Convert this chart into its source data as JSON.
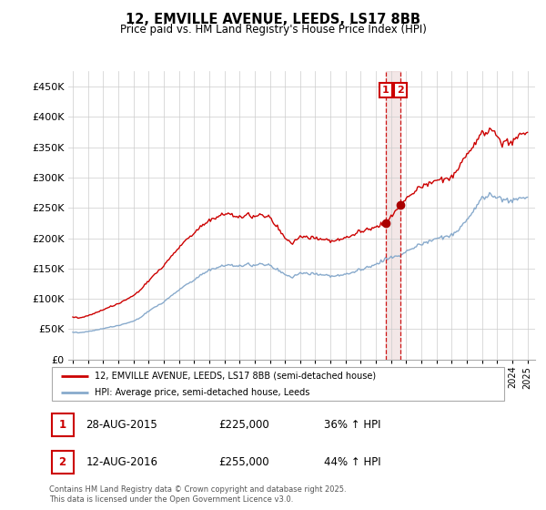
{
  "title": "12, EMVILLE AVENUE, LEEDS, LS17 8BB",
  "subtitle": "Price paid vs. HM Land Registry's House Price Index (HPI)",
  "ylim": [
    0,
    475000
  ],
  "yticks": [
    0,
    50000,
    100000,
    150000,
    200000,
    250000,
    300000,
    350000,
    400000,
    450000
  ],
  "ytick_labels": [
    "£0",
    "£50K",
    "£100K",
    "£150K",
    "£200K",
    "£250K",
    "£300K",
    "£350K",
    "£400K",
    "£450K"
  ],
  "line1_color": "#cc0000",
  "line2_color": "#88aacc",
  "marker1_color": "#aa0000",
  "vline_color": "#cc0000",
  "annotation_box_color": "#cc0000",
  "shade_color": "#ddbbbb",
  "legend_label1": "12, EMVILLE AVENUE, LEEDS, LS17 8BB (semi-detached house)",
  "legend_label2": "HPI: Average price, semi-detached house, Leeds",
  "note1_num": "1",
  "note1_date": "28-AUG-2015",
  "note1_price": "£225,000",
  "note1_hpi": "36% ↑ HPI",
  "note2_num": "2",
  "note2_date": "12-AUG-2016",
  "note2_price": "£255,000",
  "note2_hpi": "44% ↑ HPI",
  "copyright": "Contains HM Land Registry data © Crown copyright and database right 2025.\nThis data is licensed under the Open Government Licence v3.0.",
  "sale1_x": 2015.65,
  "sale1_y": 225000,
  "sale2_x": 2016.62,
  "sale2_y": 255000,
  "xlim_left": 1994.7,
  "xlim_right": 2025.5
}
